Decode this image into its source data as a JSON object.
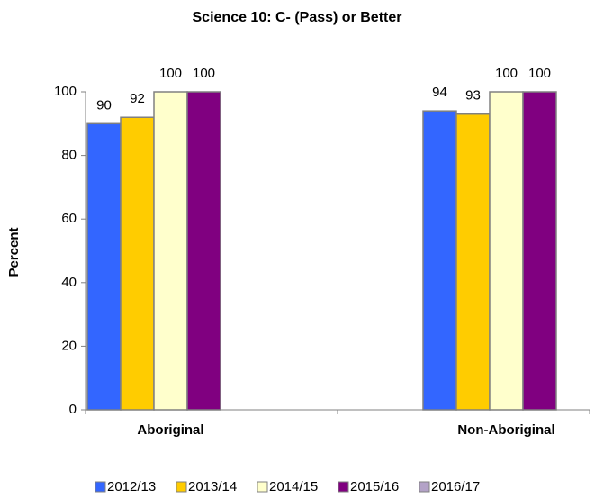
{
  "chart_data": {
    "type": "bar",
    "title": "Science 10: C- (Pass) or Better",
    "y_label": "Percent",
    "categories": [
      "Aboriginal",
      "Non-Aboriginal"
    ],
    "series": [
      {
        "name": "2012/13",
        "color": "#3366ff",
        "values": [
          90,
          94
        ]
      },
      {
        "name": "2013/14",
        "color": "#ffcc00",
        "values": [
          92,
          93
        ]
      },
      {
        "name": "2014/15",
        "color": "#ffffcc",
        "values": [
          100,
          100
        ]
      },
      {
        "name": "2015/16",
        "color": "#800080",
        "values": [
          100,
          100
        ]
      },
      {
        "name": "2016/17",
        "color": "#b3a2c7",
        "values": [
          null,
          null
        ]
      }
    ],
    "ylim": [
      0,
      100
    ],
    "yticks": [
      0,
      20,
      40,
      60,
      80,
      100
    ],
    "legend": "bottom"
  }
}
